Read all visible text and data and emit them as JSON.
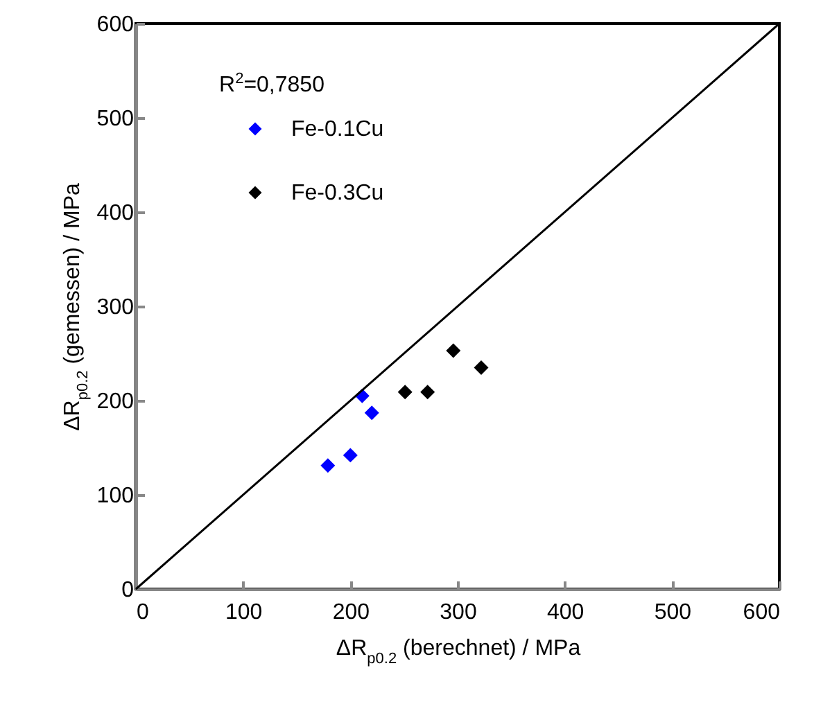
{
  "chart_data": {
    "type": "scatter",
    "xlabel": "ΔR$_{p0.2}$ (berechnet) / MPa",
    "ylabel": "ΔR$_{p0.2}$ (gemessen) / MPa",
    "annotations": [
      "R$^{2}$=0,7850"
    ],
    "xlim": [
      0,
      600
    ],
    "ylim": [
      0,
      600
    ],
    "xticks": [
      0,
      100,
      200,
      300,
      400,
      500,
      600
    ],
    "yticks": [
      0,
      100,
      200,
      300,
      400,
      500,
      600
    ],
    "grid": false,
    "legend": "top left",
    "marker": "diamond",
    "series": [
      {
        "name": "Fe-0.1Cu",
        "color": "#0000ff",
        "x": [
          179,
          200,
          211,
          220
        ],
        "values": [
          131,
          142,
          205,
          187
        ]
      },
      {
        "name": "Fe-0.3Cu",
        "color": "#000000",
        "x": [
          251,
          272,
          296,
          322
        ],
        "values": [
          209,
          209,
          253,
          235
        ]
      },
      {
        "type": "line",
        "color": "#000000",
        "x": [
          0,
          600
        ],
        "values": [
          0,
          600
        ],
        "line_style": "solid",
        "marker": "none"
      }
    ]
  }
}
